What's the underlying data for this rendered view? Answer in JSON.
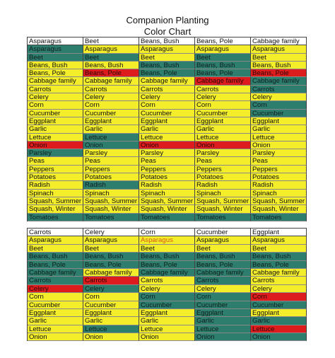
{
  "title": {
    "line1": "Companion Planting",
    "line2": "Color Chart"
  },
  "colors": {
    "good": "#f4ee2a",
    "neutral": "#2e7e6e",
    "bad": "#dd1d1d"
  },
  "table1": {
    "headers": [
      "Asparagus",
      "Beet",
      "Beans, Bush",
      "Beans, Pole",
      "Cabbage family"
    ],
    "rows": [
      [
        [
          "Asparagus",
          "g"
        ],
        [
          "Asparagus",
          "y"
        ],
        [
          "Asparagus",
          "y"
        ],
        [
          "Asparagus",
          "y"
        ],
        [
          "Asparagus",
          "y"
        ]
      ],
      [
        [
          "Beet",
          "g"
        ],
        [
          "Beet",
          "g"
        ],
        [
          "Beet",
          "y"
        ],
        [
          "Beet",
          "g"
        ],
        [
          "Beet",
          "y"
        ]
      ],
      [
        [
          "Beans, Bush",
          "y"
        ],
        [
          "Beans, Bush",
          "y"
        ],
        [
          "Beans, Bush",
          "g"
        ],
        [
          "Beans, Bush",
          "g"
        ],
        [
          "Beans, Bush",
          "y"
        ]
      ],
      [
        [
          "Beans, Pole",
          "y"
        ],
        [
          "Beans, Pole",
          "r"
        ],
        [
          "Beans, Pole",
          "g"
        ],
        [
          "Beans, Pole",
          "g"
        ],
        [
          "Beans, Pole",
          "r"
        ]
      ],
      [
        [
          "Cabbage family",
          "y"
        ],
        [
          "Cabbage family",
          "y"
        ],
        [
          "Cabbage family",
          "y"
        ],
        [
          "Cabbage family",
          "r"
        ],
        [
          "Cabbage family",
          "g"
        ]
      ],
      [
        [
          "Carrots",
          "y"
        ],
        [
          "Carrots",
          "y"
        ],
        [
          "Carrots",
          "y"
        ],
        [
          "Carrots",
          "y"
        ],
        [
          "Carrots",
          "g"
        ]
      ],
      [
        [
          "Celery",
          "y"
        ],
        [
          "Celery",
          "y"
        ],
        [
          "Celery",
          "y"
        ],
        [
          "Celery",
          "y"
        ],
        [
          "Celery",
          "y"
        ]
      ],
      [
        [
          "Corn",
          "y"
        ],
        [
          "Corn",
          "y"
        ],
        [
          "Corn",
          "y"
        ],
        [
          "Corn",
          "y"
        ],
        [
          "Corn",
          "g"
        ]
      ],
      [
        [
          "Cucumber",
          "y"
        ],
        [
          "Cucumber",
          "y"
        ],
        [
          "Cucumber",
          "y"
        ],
        [
          "Cucumber",
          "y"
        ],
        [
          "Cucumber",
          "g"
        ]
      ],
      [
        [
          "Eggplant",
          "y"
        ],
        [
          "Eggplant",
          "y"
        ],
        [
          "Eggplant",
          "y"
        ],
        [
          "Eggplant",
          "y"
        ],
        [
          "Eggplant",
          "y"
        ]
      ],
      [
        [
          "Garlic",
          "y"
        ],
        [
          "Garlic",
          "y"
        ],
        [
          "Garlic",
          "y"
        ],
        [
          "Garlic",
          "y"
        ],
        [
          "Garlic",
          "y"
        ]
      ],
      [
        [
          "Lettuce",
          "y"
        ],
        [
          "Lettuce",
          "g"
        ],
        [
          "Lettuce",
          "y"
        ],
        [
          "Lettuce",
          "y"
        ],
        [
          "Lettuce",
          "y"
        ]
      ],
      [
        [
          "Onion",
          "r"
        ],
        [
          "Onion",
          "g"
        ],
        [
          "Onion",
          "r"
        ],
        [
          "Onion",
          "r"
        ],
        [
          "Onion",
          "y"
        ]
      ],
      [
        [
          "Parsley",
          "g"
        ],
        [
          "Parsley",
          "y"
        ],
        [
          "Parsley",
          "y"
        ],
        [
          "Parsley",
          "y"
        ],
        [
          "Parsley",
          "y"
        ]
      ],
      [
        [
          "Peas",
          "y"
        ],
        [
          "Peas",
          "y"
        ],
        [
          "Peas",
          "y"
        ],
        [
          "Peas",
          "y"
        ],
        [
          "Peas",
          "y"
        ]
      ],
      [
        [
          "Peppers",
          "y"
        ],
        [
          "Peppers",
          "y"
        ],
        [
          "Peppers",
          "y"
        ],
        [
          "Peppers",
          "y"
        ],
        [
          "Peppers",
          "y"
        ]
      ],
      [
        [
          "Potatoes",
          "y"
        ],
        [
          "Potatoes",
          "y"
        ],
        [
          "Potatoes",
          "y"
        ],
        [
          "Potatoes",
          "y"
        ],
        [
          "Potatoes",
          "y"
        ]
      ],
      [
        [
          "Radish",
          "y"
        ],
        [
          "Radish",
          "g"
        ],
        [
          "Radish",
          "y"
        ],
        [
          "Radish",
          "y"
        ],
        [
          "Radish",
          "y"
        ]
      ],
      [
        [
          "Spinach",
          "y"
        ],
        [
          "Spinach",
          "y"
        ],
        [
          "Spinach",
          "y"
        ],
        [
          "Spinach",
          "y"
        ],
        [
          "Spinach",
          "y"
        ]
      ],
      [
        [
          "Squash, Summer",
          "y"
        ],
        [
          "Squash, Summer",
          "y"
        ],
        [
          "Squash, Summer",
          "y"
        ],
        [
          "Squash, Summer",
          "y"
        ],
        [
          "Squash, Summer",
          "y"
        ]
      ],
      [
        [
          "Squash, Winter",
          "y"
        ],
        [
          "Squash, Winter",
          "y"
        ],
        [
          "Squash, Winter",
          "y"
        ],
        [
          "Squash, Winter",
          "y"
        ],
        [
          "Squash, Winter",
          "y"
        ]
      ],
      [
        [
          "Tomatoes",
          "g"
        ],
        [
          "Tomatoes",
          "g"
        ],
        [
          "Tomatoes",
          "g"
        ],
        [
          "Tomatoes",
          "g"
        ],
        [
          "Tomatoes",
          "g"
        ]
      ]
    ]
  },
  "table2": {
    "headers": [
      "Carrots",
      "Celery",
      "Corn",
      "Cucumber",
      "Eggplant"
    ],
    "rows": [
      [
        [
          "Asparagus",
          "y"
        ],
        [
          "Asparagus",
          "y"
        ],
        [
          "Asparagus",
          "ro"
        ],
        [
          "Asparagus",
          "y"
        ],
        [
          "Asparagus",
          "y"
        ]
      ],
      [
        [
          "Beet",
          "y"
        ],
        [
          "Beet",
          "y"
        ],
        [
          "Beet",
          "y"
        ],
        [
          "Beet",
          "y"
        ],
        [
          "Beet",
          "y"
        ]
      ],
      [
        [
          "Beans, Bush",
          "g"
        ],
        [
          "Beans, Bush",
          "g"
        ],
        [
          "Beans, Bush",
          "g"
        ],
        [
          "Beans, Bush",
          "g"
        ],
        [
          "Beans, Bush",
          "g"
        ]
      ],
      [
        [
          "Beans, Pole",
          "g"
        ],
        [
          "Beans, Pole",
          "g"
        ],
        [
          "Beans, Pole",
          "g"
        ],
        [
          "Beans, Pole",
          "g"
        ],
        [
          "Beans, Pole",
          "g"
        ]
      ],
      [
        [
          "Cabbage family",
          "g"
        ],
        [
          "Cabbage family",
          "y"
        ],
        [
          "Cabbage family",
          "g"
        ],
        [
          "Cabbage family",
          "g"
        ],
        [
          "Cabbage family",
          "y"
        ]
      ],
      [
        [
          "Carrots",
          "g"
        ],
        [
          "Carrots",
          "r"
        ],
        [
          "Carrots",
          "y"
        ],
        [
          "Carrots",
          "g"
        ],
        [
          "Carrots",
          "y"
        ]
      ],
      [
        [
          "Celery",
          "r"
        ],
        [
          "Celery",
          "g"
        ],
        [
          "Celery",
          "y"
        ],
        [
          "Celery",
          "y"
        ],
        [
          "Celery",
          "y"
        ]
      ],
      [
        [
          "Corn",
          "y"
        ],
        [
          "Corn",
          "y"
        ],
        [
          "Corn",
          "g"
        ],
        [
          "Corn",
          "g"
        ],
        [
          "Corn",
          "r"
        ]
      ],
      [
        [
          "Cucumber",
          "y"
        ],
        [
          "Cucumber",
          "y"
        ],
        [
          "Cucumber",
          "g"
        ],
        [
          "Cucumber",
          "g"
        ],
        [
          "Cucumber",
          "g"
        ]
      ],
      [
        [
          "Eggplant",
          "y"
        ],
        [
          "Eggplant",
          "y"
        ],
        [
          "Eggplant",
          "y"
        ],
        [
          "Eggplant",
          "g"
        ],
        [
          "Eggplant",
          "y"
        ]
      ],
      [
        [
          "Garlic",
          "y"
        ],
        [
          "Garlic",
          "y"
        ],
        [
          "Garlic",
          "y"
        ],
        [
          "Garlic",
          "g"
        ],
        [
          "Garlic",
          "g"
        ]
      ],
      [
        [
          "Lettuce",
          "y"
        ],
        [
          "Lettuce",
          "g"
        ],
        [
          "Lettuce",
          "y"
        ],
        [
          "Lettuce",
          "g"
        ],
        [
          "Lettuce",
          "r"
        ]
      ],
      [
        [
          "Onion",
          "y"
        ],
        [
          "Onion",
          "y"
        ],
        [
          "Onion",
          "y"
        ],
        [
          "Onion",
          "g"
        ],
        [
          "Onion",
          "g"
        ]
      ]
    ]
  }
}
